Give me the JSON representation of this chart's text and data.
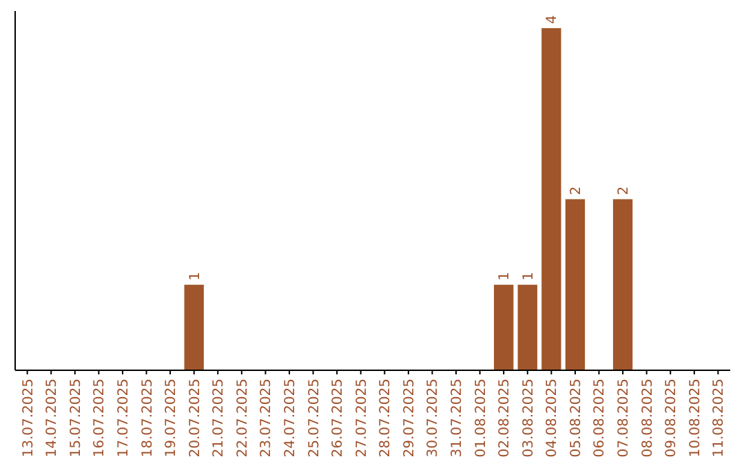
{
  "chart_data": {
    "type": "bar",
    "categories": [
      "13.07.2025",
      "14.07.2025",
      "15.07.2025",
      "16.07.2025",
      "17.07.2025",
      "18.07.2025",
      "19.07.2025",
      "20.07.2025",
      "21.07.2025",
      "22.07.2025",
      "23.07.2025",
      "24.07.2025",
      "25.07.2025",
      "26.07.2025",
      "27.07.2025",
      "28.07.2025",
      "29.07.2025",
      "30.07.2025",
      "31.07.2025",
      "01.08.2025",
      "02.08.2025",
      "03.08.2025",
      "04.08.2025",
      "05.08.2025",
      "06.08.2025",
      "07.08.2025",
      "08.08.2025",
      "09.08.2025",
      "10.08.2025",
      "11.08.2025"
    ],
    "values": [
      0,
      0,
      0,
      0,
      0,
      0,
      0,
      1,
      0,
      0,
      0,
      0,
      0,
      0,
      0,
      0,
      0,
      0,
      0,
      0,
      1,
      1,
      4,
      2,
      0,
      2,
      0,
      0,
      0,
      0
    ],
    "value_labels": [
      null,
      null,
      null,
      null,
      null,
      null,
      null,
      "1",
      null,
      null,
      null,
      null,
      null,
      null,
      null,
      null,
      null,
      null,
      null,
      null,
      "1",
      "1",
      "4",
      "2",
      null,
      "2",
      null,
      null,
      null,
      null
    ],
    "color": "#a0562a",
    "ylim": [
      0,
      4.2
    ],
    "tick_labels": "x"
  }
}
